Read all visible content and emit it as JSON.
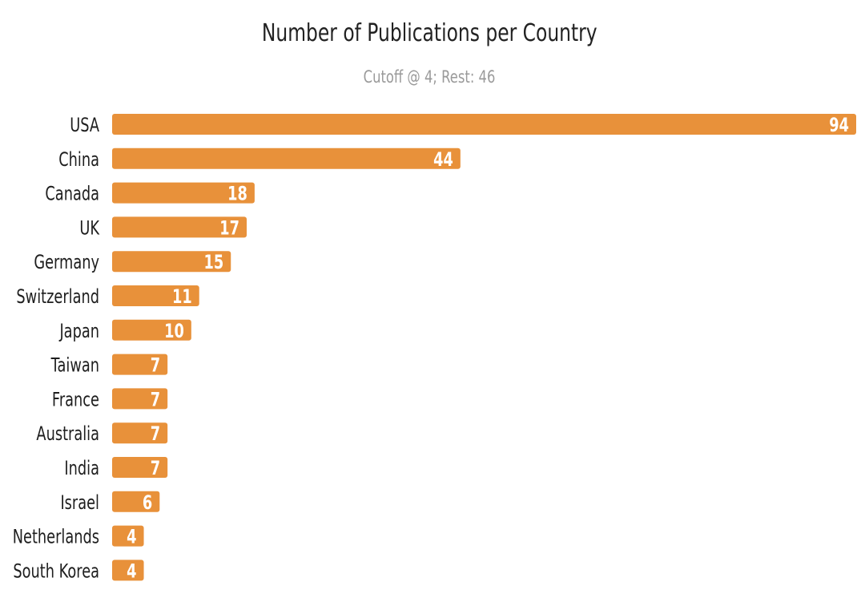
{
  "chart_data": {
    "type": "bar",
    "orientation": "horizontal",
    "title": "Number of Publications per Country",
    "subtitle": "Cutoff @ 4; Rest: 46",
    "categories": [
      "USA",
      "China",
      "Canada",
      "UK",
      "Germany",
      "Switzerland",
      "Japan",
      "Taiwan",
      "France",
      "Australia",
      "India",
      "Israel",
      "Netherlands",
      "South Korea"
    ],
    "values": [
      94,
      44,
      18,
      17,
      15,
      11,
      10,
      7,
      7,
      7,
      7,
      6,
      4,
      4
    ],
    "xlim": [
      0,
      94
    ],
    "grid": false,
    "legend": "none",
    "data_labels": "inside-end",
    "bar_color": "#e8913a",
    "label_color": "#ffffff"
  }
}
